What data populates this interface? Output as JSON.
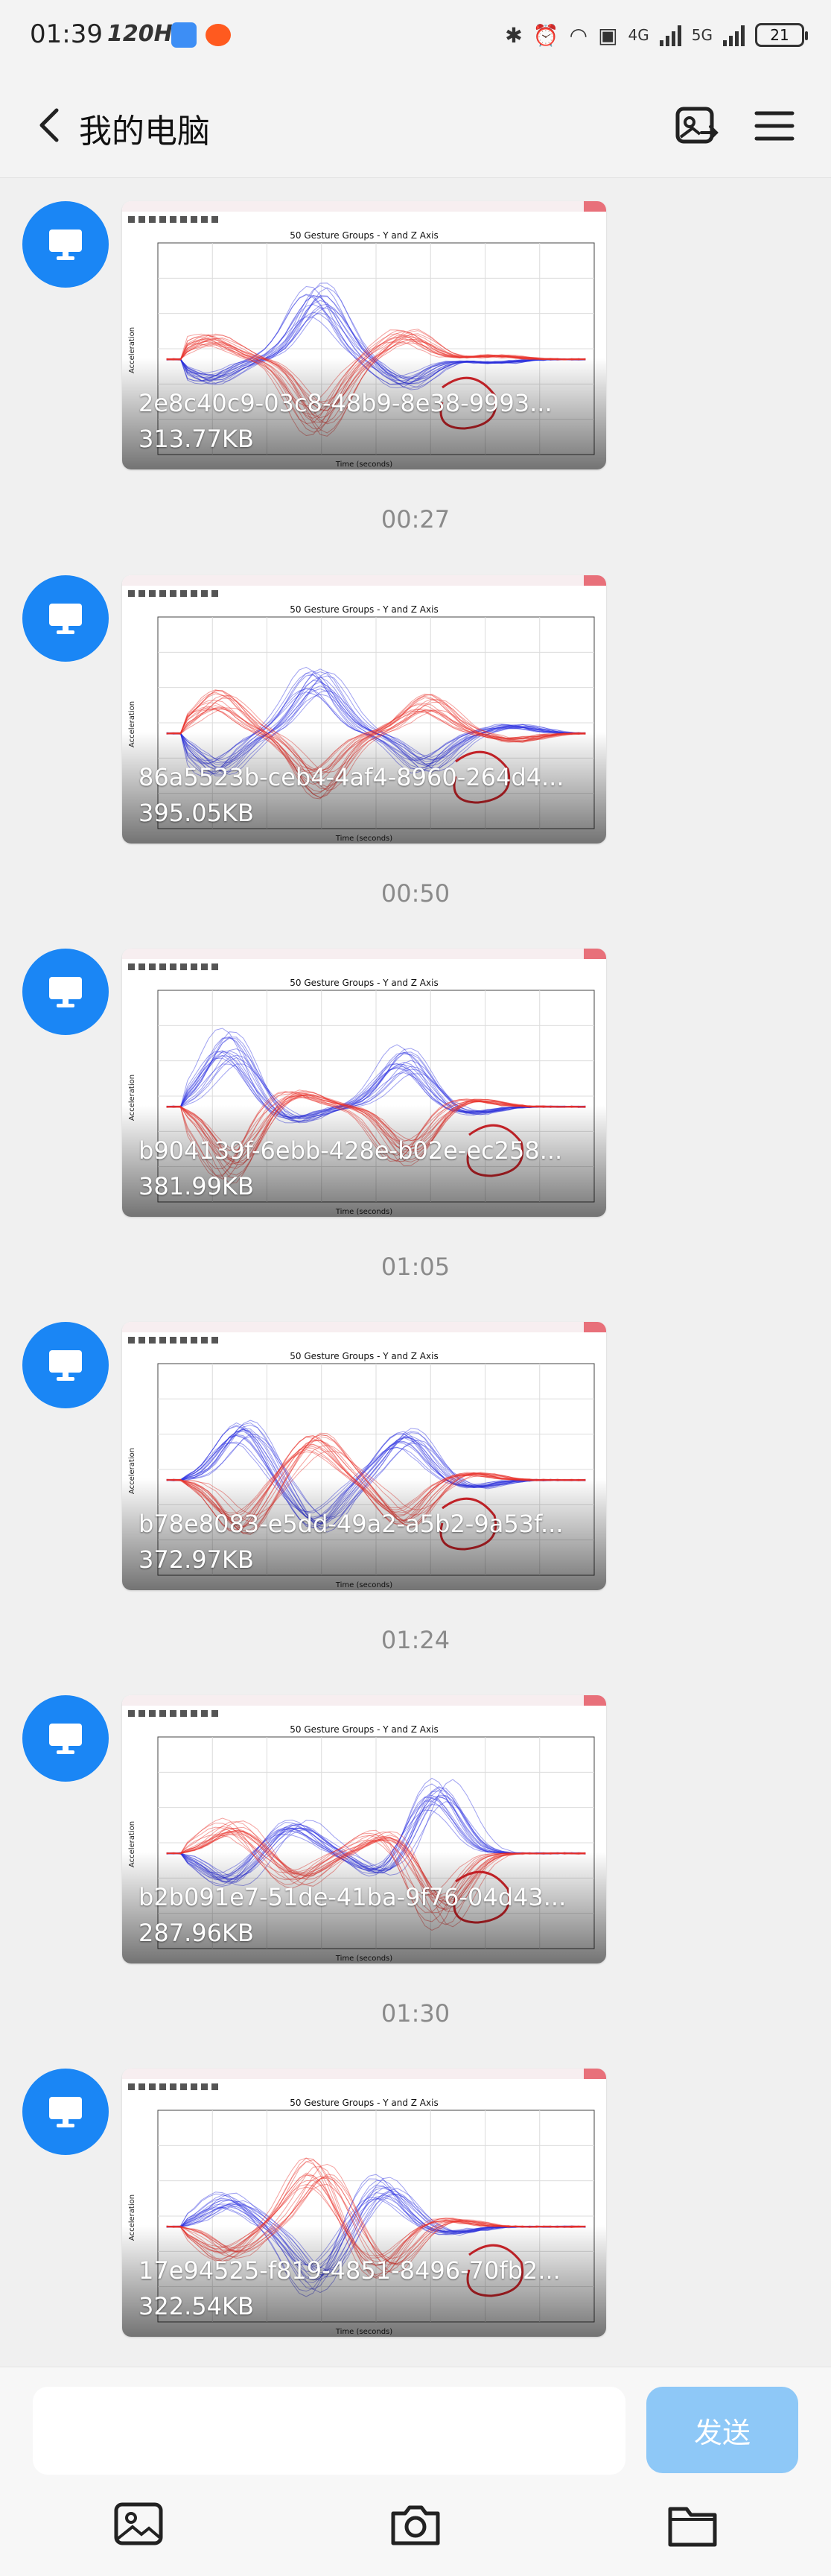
{
  "status_bar": {
    "time": "01:39",
    "refresh": "120Hz",
    "net1": "4G",
    "net2": "5G",
    "battery": "21"
  },
  "header": {
    "title": "我的电脑"
  },
  "plot": {
    "title": "50 Gesture Groups - Y and Z Axis",
    "xlabel": "Time (seconds)",
    "ylabel": "Acceleration"
  },
  "messages": [
    {
      "filename": "2e8c40c9-03c8-48b9-8e38-9993...",
      "size": "313.77KB",
      "time": "00:27"
    },
    {
      "filename": "86a5523b-ceb4-4af4-8960-264d4...",
      "size": "395.05KB",
      "time": "00:50"
    },
    {
      "filename": "b904139f-6ebb-428e-b02e-ec258...",
      "size": "381.99KB",
      "time": "01:05"
    },
    {
      "filename": "b78e8083-e5dd-49a2-a5b2-9a53f...",
      "size": "372.97KB",
      "time": "01:24"
    },
    {
      "filename": "b2b091e7-51de-41ba-9f76-04d43...",
      "size": "287.96KB",
      "time": "01:30"
    },
    {
      "filename": "17e94525-f819-4851-8496-70fb2...",
      "size": "322.54KB"
    }
  ],
  "composer": {
    "placeholder": "",
    "send_label": "发送"
  },
  "colors": {
    "accent": "#1a86f5",
    "send_button": "#8ec8f7",
    "series_y": "#e8302a",
    "series_z": "#2b2ee0"
  },
  "icons": {
    "back": "chevron-left-icon",
    "screen": "screen-share-icon",
    "menu": "menu-icon",
    "avatar": "monitor-icon",
    "image": "image-icon",
    "camera": "camera-icon",
    "folder": "folder-icon"
  }
}
